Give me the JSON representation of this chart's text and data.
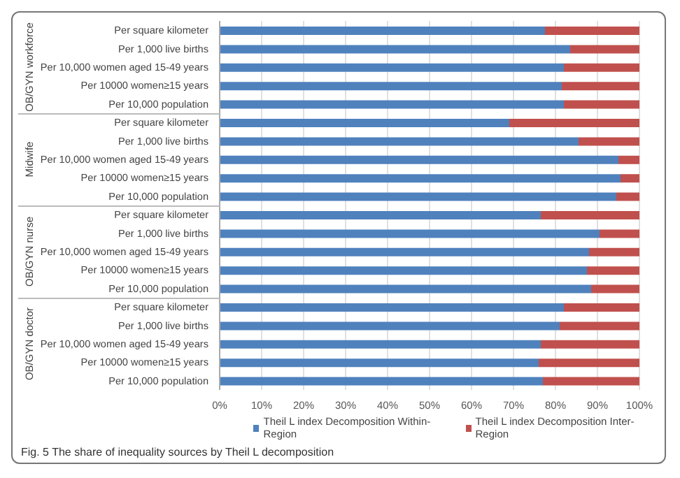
{
  "chart_data": {
    "type": "bar",
    "orientation": "horizontal",
    "stacked": true,
    "categories": [
      "Per square kilometer",
      "Per 1,000 live births",
      "Per 10,000 women aged 15-49 years",
      "Per 10000 women≥15 years",
      "Per 10,000 population",
      "Per square kilometer",
      "Per 1,000 live births",
      "Per 10,000 women aged 15-49 years",
      "Per 10000 women≥15 years",
      "Per 10,000 population",
      "Per square kilometer",
      "Per 1,000 live births",
      "Per 10,000 women aged 15-49 years",
      "Per 10000 women≥15 years",
      "Per 10,000 population",
      "Per square kilometer",
      "Per 1,000 live births",
      "Per 10,000 women aged 15-49 years",
      "Per 10000 women≥15 years",
      "Per 10,000 population"
    ],
    "series": [
      {
        "name": "Theil L index Decomposition Within-Region",
        "color": "#4f81bd",
        "values": [
          77.5,
          83.5,
          82,
          81.5,
          82,
          69,
          85.5,
          95,
          95.5,
          94.5,
          76.5,
          90.5,
          88,
          87.5,
          88.5,
          82,
          81,
          76.5,
          76,
          77
        ]
      },
      {
        "name": "Theil L index Decomposition Inter-Region",
        "color": "#c0504d",
        "values": [
          22.5,
          16.5,
          18,
          18.5,
          18,
          31,
          14.5,
          5,
          4.5,
          5.5,
          23.5,
          9.5,
          12,
          12.5,
          11.5,
          18,
          19,
          23.5,
          24,
          23
        ]
      }
    ],
    "xlim": [
      0,
      100
    ],
    "xticks": [
      {
        "value": 0,
        "label": "0%"
      },
      {
        "value": 10,
        "label": "10%"
      },
      {
        "value": 20,
        "label": "20%"
      },
      {
        "value": 30,
        "label": "30%"
      },
      {
        "value": 40,
        "label": "40%"
      },
      {
        "value": 50,
        "label": "50%"
      },
      {
        "value": 60,
        "label": "60%"
      },
      {
        "value": 70,
        "label": "70%"
      },
      {
        "value": 80,
        "label": "80%"
      },
      {
        "value": 90,
        "label": "90%"
      },
      {
        "value": 100,
        "label": "100%"
      }
    ],
    "grid": "x",
    "legend": "bottom",
    "annotations": [
      "OB/GYN workforce",
      "Midwife",
      "OB/GYN nurse",
      "OB/GYN doctor",
      "Fig. 5 The share of inequality sources by Theil L decomposition"
    ]
  }
}
